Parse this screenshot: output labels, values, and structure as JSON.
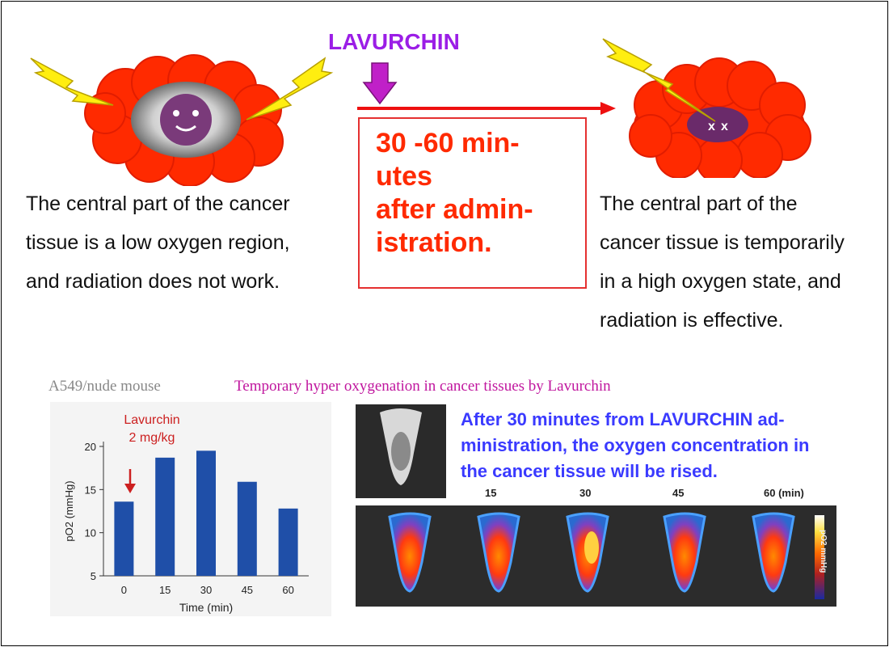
{
  "top": {
    "drug_label": "LAVURCHIN",
    "time_box": "30 -60 min-\nutes\nafter admin-\nistration.",
    "left_caption": [
      "The central part of the cancer",
      "tissue is a low oxygen region,",
      "and radiation does not work."
    ],
    "right_caption": [
      "The central part of the",
      "cancer tissue is temporarily",
      "in a high oxygen state, and",
      "radiation is effective."
    ]
  },
  "bottom": {
    "model_label": "A549/nude mouse",
    "heading": "Temporary hyper oxygenation in cancer tissues by Lavurchin",
    "dose_label": [
      "Lavurchin",
      "2 mg/kg"
    ],
    "note": "After 30 minutes from LAVURCHIN ad-\nministration, the oxygen concentration in\nthe cancer tissue will be rised.",
    "image_time_labels": [
      "15",
      "30",
      "45",
      "60 (min)"
    ],
    "colorbar_label": "pO2 mmHg"
  },
  "chart_data": {
    "type": "bar",
    "categories": [
      "0",
      "15",
      "30",
      "45",
      "60"
    ],
    "values": [
      13.6,
      18.7,
      19.5,
      15.9,
      12.8
    ],
    "xlabel": "Time (min)",
    "ylabel": "pO2 (mmHg)",
    "ylim": [
      5,
      20
    ],
    "yticks": [
      5,
      10,
      15,
      20
    ],
    "bar_color": "#1f4fa8"
  },
  "colors": {
    "tumor": "#ff2a00",
    "bolt": "#ffee10",
    "drug_arrow": "#c020c8",
    "timeline_arrow": "#ee1010"
  }
}
